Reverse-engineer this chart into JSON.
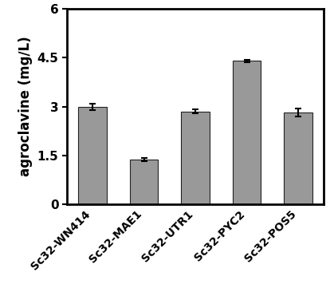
{
  "categories": [
    "Sc32-WN414",
    "Sc32-MAE1",
    "Sc32-UTR1",
    "Sc32-PYC2",
    "Sc32-POS5"
  ],
  "values": [
    3.0,
    1.37,
    2.85,
    4.4,
    2.82
  ],
  "errors": [
    0.1,
    0.05,
    0.06,
    0.04,
    0.12
  ],
  "bar_color": "#999999",
  "bar_edgecolor": "#222222",
  "ylabel": "agroclavine (mg/L)",
  "ylim": [
    0,
    6
  ],
  "yticks": [
    0,
    1.5,
    3.0,
    4.5,
    6.0
  ],
  "ytick_labels": [
    "0",
    "1.5",
    "3",
    "4.5",
    "6"
  ],
  "bar_width": 0.55,
  "ecolor": "black",
  "capsize": 3,
  "ylabel_fontsize": 12,
  "tick_fontsize": 11,
  "xtick_fontsize": 10,
  "background_color": "#ffffff",
  "spine_linewidth": 2.0
}
